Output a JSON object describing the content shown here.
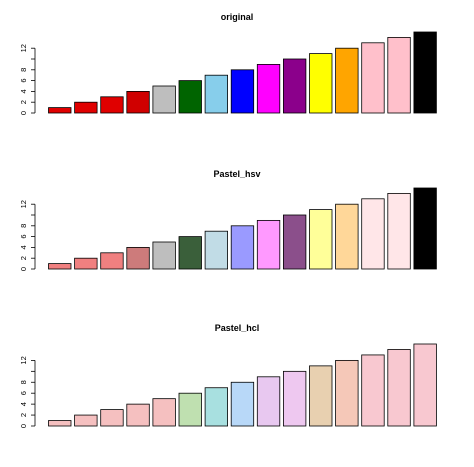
{
  "chart_data": [
    {
      "type": "bar",
      "title": "original",
      "values": [
        1,
        2,
        3,
        4,
        5,
        6,
        7,
        8,
        9,
        10,
        11,
        12,
        13,
        14,
        15
      ],
      "ylim": [
        0,
        15
      ],
      "yticks": [
        0,
        2,
        4,
        6,
        8,
        10,
        12
      ],
      "ytick_labels": [
        "0",
        "2",
        "4",
        "6",
        "8",
        "",
        "12"
      ],
      "colors": [
        "#e00000",
        "#e00000",
        "#e00000",
        "#d00000",
        "#bebebe",
        "#006400",
        "#87ceeb",
        "#0000ff",
        "#ff00ff",
        "#8b008b",
        "#ffff00",
        "#ffa500",
        "#ffc0cb",
        "#ffc0cb",
        "#000000"
      ]
    },
    {
      "type": "bar",
      "title": "Pastel_hsv",
      "values": [
        1,
        2,
        3,
        4,
        5,
        6,
        7,
        8,
        9,
        10,
        11,
        12,
        13,
        14,
        15
      ],
      "ylim": [
        0,
        15
      ],
      "yticks": [
        0,
        2,
        4,
        6,
        8,
        10,
        12
      ],
      "ytick_labels": [
        "0",
        "2",
        "4",
        "6",
        "8",
        "",
        "12"
      ],
      "colors": [
        "#f08080",
        "#f08080",
        "#f08080",
        "#cd7b7b",
        "#bebebe",
        "#3a5f3a",
        "#c1dce6",
        "#9a9aff",
        "#ff99ff",
        "#8b4f8b",
        "#ffff99",
        "#ffd799",
        "#ffe6e8",
        "#ffe6e8",
        "#000000"
      ]
    },
    {
      "type": "bar",
      "title": "Pastel_hcl",
      "values": [
        1,
        2,
        3,
        4,
        5,
        6,
        7,
        8,
        9,
        10,
        11,
        12,
        13,
        14,
        15
      ],
      "ylim": [
        0,
        15
      ],
      "yticks": [
        0,
        2,
        4,
        6,
        8,
        10,
        12
      ],
      "ytick_labels": [
        "0",
        "2",
        "4",
        "6",
        "8",
        "",
        "12"
      ],
      "colors": [
        "#f5c0c0",
        "#f5c0c0",
        "#f5c0c0",
        "#f5c0c0",
        "#f5c0c0",
        "#bfe0b0",
        "#a8e0e0",
        "#b8d8f8",
        "#e8c8f0",
        "#eec8f0",
        "#e8d0b0",
        "#f5c8b8",
        "#f8c8d0",
        "#f8c8d0",
        "#f8c8d0"
      ]
    }
  ]
}
